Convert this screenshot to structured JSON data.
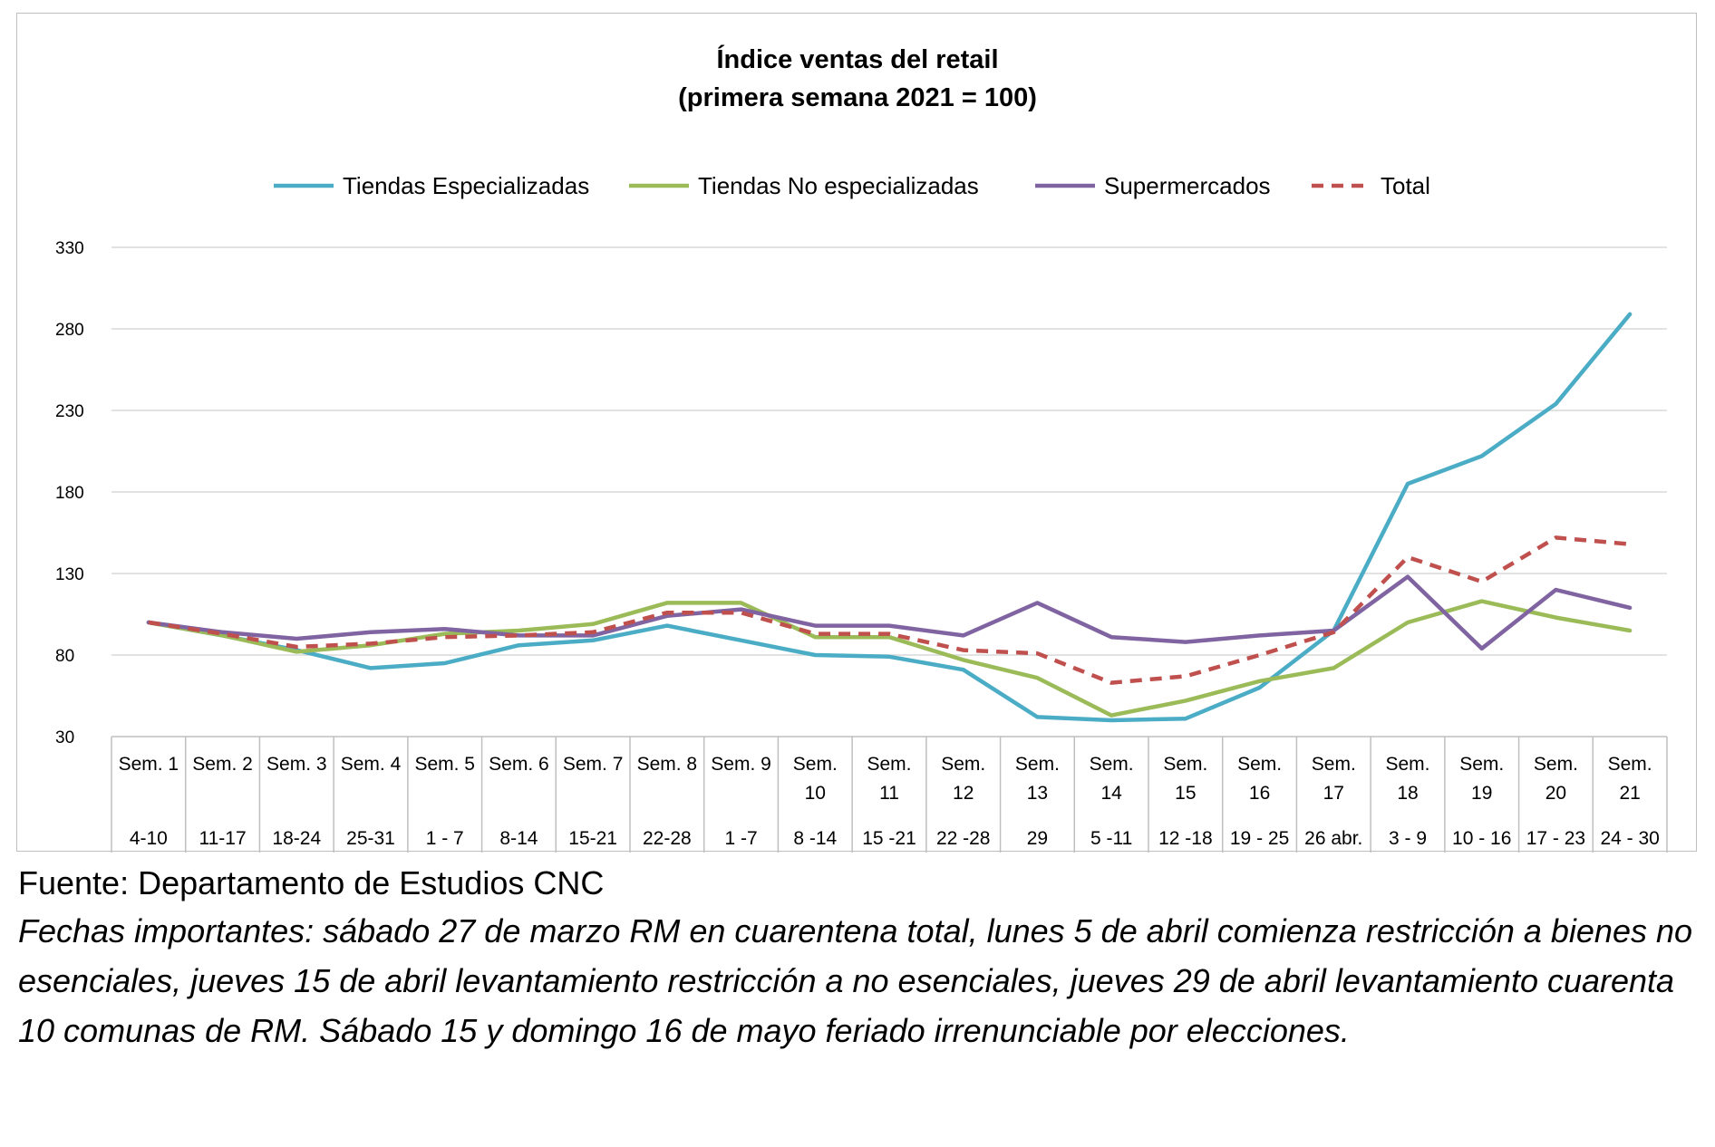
{
  "chart_data": {
    "type": "line",
    "title": "Índice ventas del retail",
    "subtitle": "(primera semana 2021 = 100)",
    "ylim": [
      30,
      330
    ],
    "yticks": [
      30,
      80,
      130,
      180,
      230,
      280,
      330
    ],
    "grid": true,
    "legend_position": "top",
    "categories": [
      {
        "week": "Sem. 1",
        "dates": "4-10"
      },
      {
        "week": "Sem. 2",
        "dates": "11-17"
      },
      {
        "week": "Sem. 3",
        "dates": "18-24"
      },
      {
        "week": "Sem. 4",
        "dates": "25-31"
      },
      {
        "week": "Sem. 5",
        "dates": "1 - 7"
      },
      {
        "week": "Sem. 6",
        "dates": "8-14"
      },
      {
        "week": "Sem. 7",
        "dates": "15-21"
      },
      {
        "week": "Sem. 8",
        "dates": "22-28"
      },
      {
        "week": "Sem. 9",
        "dates": "1 -7"
      },
      {
        "week": "Sem. 10",
        "dates": "8 -14"
      },
      {
        "week": "Sem. 11",
        "dates": "15 -21"
      },
      {
        "week": "Sem. 12",
        "dates": "22 -28"
      },
      {
        "week": "Sem. 13",
        "dates": "29"
      },
      {
        "week": "Sem. 14",
        "dates": "5 -11"
      },
      {
        "week": "Sem. 15",
        "dates": "12 -18"
      },
      {
        "week": "Sem. 16",
        "dates": "19 - 25"
      },
      {
        "week": "Sem. 17",
        "dates": "26 abr."
      },
      {
        "week": "Sem. 18",
        "dates": "3 - 9"
      },
      {
        "week": "Sem. 19",
        "dates": "10 - 16"
      },
      {
        "week": "Sem. 20",
        "dates": "17 - 23"
      },
      {
        "week": "Sem. 21",
        "dates": "24 - 30"
      }
    ],
    "series": [
      {
        "name": "Tiendas Especializadas",
        "color": "#4bacc6",
        "dash": false,
        "values": [
          100,
          92,
          83,
          72,
          75,
          86,
          89,
          98,
          89,
          80,
          79,
          71,
          42,
          40,
          41,
          60,
          95,
          185,
          202,
          234,
          289
        ]
      },
      {
        "name": "Tiendas No especializadas",
        "color": "#9bbb59",
        "dash": false,
        "values": [
          100,
          92,
          82,
          86,
          93,
          95,
          99,
          112,
          112,
          91,
          91,
          77,
          66,
          43,
          52,
          64,
          72,
          100,
          113,
          103,
          95
        ]
      },
      {
        "name": "Supermercados",
        "color": "#8064a2",
        "dash": false,
        "values": [
          100,
          94,
          90,
          94,
          96,
          92,
          92,
          104,
          108,
          98,
          98,
          92,
          112,
          91,
          88,
          92,
          95,
          128,
          84,
          120,
          109
        ]
      },
      {
        "name": "Total",
        "color": "#c0504d",
        "dash": true,
        "values": [
          100,
          93,
          85,
          87,
          91,
          92,
          94,
          106,
          106,
          93,
          93,
          83,
          81,
          63,
          67,
          80,
          94,
          140,
          125,
          152,
          148
        ]
      }
    ]
  },
  "footer": {
    "source": "Fuente: Departamento de Estudios CNC",
    "note": "Fechas importantes: sábado 27 de marzo RM en cuarentena total, lunes 5 de abril comienza restricción a bienes no esenciales, jueves 15 de abril levantamiento restricción a no esenciales, jueves 29 de abril levantamiento cuarenta 10 comunas de RM. Sábado 15 y domingo 16 de mayo feriado irrenunciable por elecciones."
  }
}
